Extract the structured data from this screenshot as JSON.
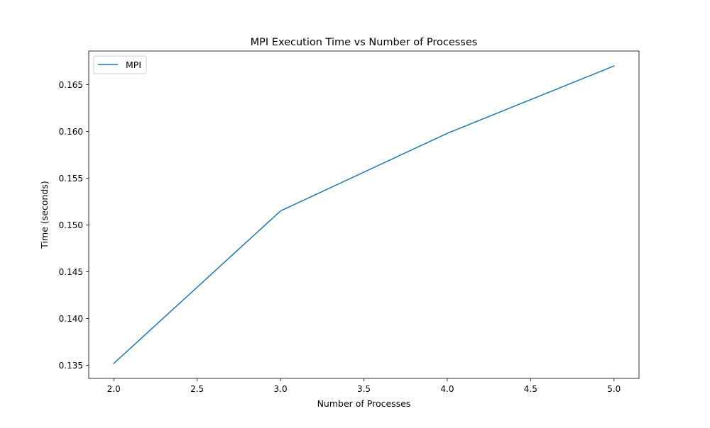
{
  "chart_data": {
    "type": "line",
    "title": "MPI Execution Time vs Number of Processes",
    "xlabel": "Number of Processes",
    "ylabel": "Time (seconds)",
    "xlim": [
      1.85,
      5.15
    ],
    "ylim": [
      0.1336,
      0.1686
    ],
    "x_ticks": [
      2.0,
      2.5,
      3.0,
      3.5,
      4.0,
      4.5,
      5.0
    ],
    "x_tick_labels": [
      "2.0",
      "2.5",
      "3.0",
      "3.5",
      "4.0",
      "4.5",
      "5.0"
    ],
    "y_ticks": [
      0.135,
      0.14,
      0.145,
      0.15,
      0.155,
      0.16,
      0.165
    ],
    "y_tick_labels": [
      "0.135",
      "0.140",
      "0.145",
      "0.150",
      "0.155",
      "0.160",
      "0.165"
    ],
    "grid": false,
    "legend_position": "upper-left",
    "series": [
      {
        "name": "MPI",
        "color": "#1f77b4",
        "x": [
          2,
          3,
          4,
          5
        ],
        "y": [
          0.1352,
          0.1515,
          0.1598,
          0.167
        ]
      }
    ]
  }
}
